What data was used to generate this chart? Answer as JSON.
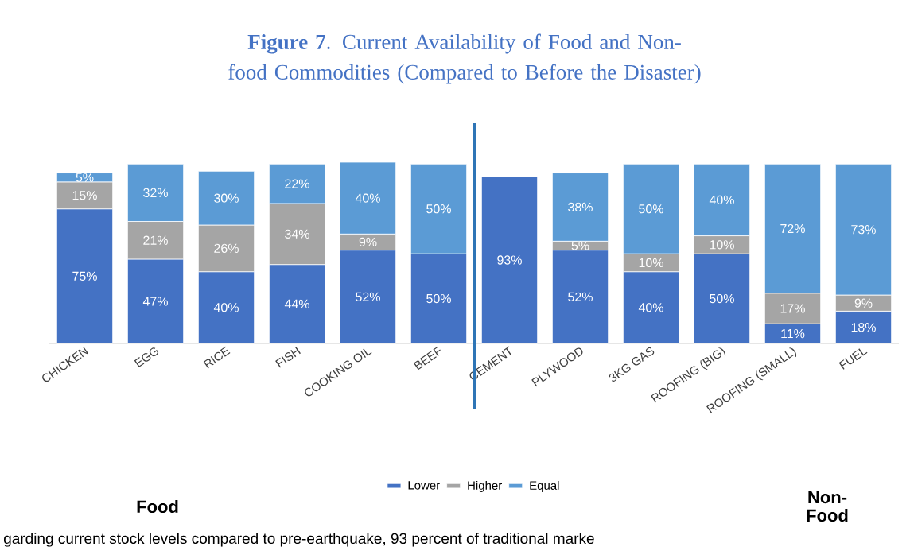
{
  "chart_data": {
    "type": "bar",
    "stacked": true,
    "title": "**Figure 7**. Current Availability of Food and Non-food Commodities (Compared to Before the Disaster)",
    "categories": [
      "CHICKEN",
      "EGG",
      "RICE",
      "FISH",
      "COOKING OIL",
      "BEEF",
      "CEMENT",
      "PLYWOOD",
      "3KG GAS",
      "ROOFING (BIG)",
      "ROOFING (SMALL)",
      "FUEL"
    ],
    "series": [
      {
        "name": "Lower",
        "color": "#4472c4",
        "values": [
          75,
          47,
          40,
          44,
          52,
          50,
          93,
          52,
          40,
          50,
          11,
          18
        ],
        "value_labels": [
          "75%",
          "47%",
          "40%",
          "44%",
          "52%",
          "50%",
          "93%",
          "52%",
          "40%",
          "50%",
          "11%",
          "18%"
        ]
      },
      {
        "name": "Higher",
        "color": "#a5a5a5",
        "values": [
          15,
          21,
          26,
          34,
          9,
          null,
          null,
          5,
          10,
          10,
          17,
          9
        ],
        "value_labels": [
          "15%",
          "21%",
          "26%",
          "34%",
          "9%",
          null,
          null,
          "5%",
          "10%",
          "10%",
          "17%",
          "9%"
        ]
      },
      {
        "name": "Equal",
        "color": "#5b9bd5",
        "values": [
          5,
          32,
          30,
          22,
          40,
          50,
          null,
          38,
          50,
          40,
          72,
          73
        ],
        "value_labels": [
          "5%",
          "32%",
          "30%",
          "22%",
          "40%",
          "50%",
          null,
          "38%",
          "50%",
          "40%",
          "72%",
          "73%"
        ]
      }
    ],
    "legend": "bottom",
    "annotations": [
      "Food",
      "Non-Food",
      "garding current stock levels compared to pre-earthquake, 93 percent of traditional marke"
    ]
  }
}
